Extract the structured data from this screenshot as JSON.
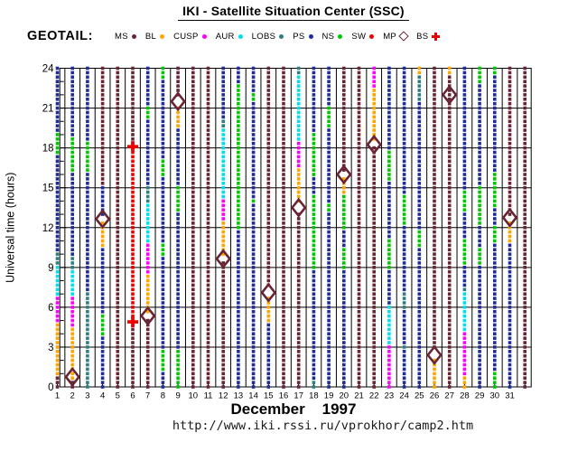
{
  "header": {
    "title": "IKI - Satellite Situation Center (SSC)"
  },
  "legend": {
    "satellite_label": "GEOTAIL:",
    "items": [
      {
        "label": "MS",
        "marker": "dot",
        "region": "MS"
      },
      {
        "label": "BL",
        "marker": "dot",
        "region": "BL"
      },
      {
        "label": "CUSP",
        "marker": "dot",
        "region": "CUSP"
      },
      {
        "label": "AUR",
        "marker": "dot",
        "region": "AUR"
      },
      {
        "label": "LOBS",
        "marker": "dot",
        "region": "LOBS"
      },
      {
        "label": "PS",
        "marker": "dot",
        "region": "PS"
      },
      {
        "label": "NS",
        "marker": "dot",
        "region": "NS"
      },
      {
        "label": "SW",
        "marker": "dot",
        "region": "SW"
      },
      {
        "label": "MP",
        "marker": "open-diamond",
        "region": "MP"
      },
      {
        "label": "BS",
        "marker": "plus",
        "region": "BS"
      }
    ]
  },
  "footer": {
    "month_year": "December    1997",
    "url": "http://www.iki.rssi.ru/vprokhor/camp2.htm"
  },
  "chart_data": {
    "type": "scatter",
    "title": "IKI - Satellite Situation Center (SSC)",
    "satellite": "GEOTAIL",
    "month": "December",
    "year": "1997",
    "ylabel": "Universal time (hours)",
    "ylim": [
      0,
      24
    ],
    "y_ticks": [
      0,
      3,
      6,
      9,
      12,
      15,
      18,
      21,
      24
    ],
    "x_ticks": [
      "1",
      "2",
      "3",
      "4",
      "5",
      "6",
      "7",
      "8",
      "9",
      "10",
      "11",
      "12",
      "13",
      "14",
      "15",
      "16",
      "17",
      "18",
      "19",
      "20",
      "21",
      "22",
      "23",
      "24",
      "25",
      "26",
      "27",
      "28",
      "29",
      "30",
      "31"
    ],
    "grid": true,
    "legend_position": "top",
    "sample_interval_hours": 0.3333,
    "region_colors": {
      "MS": "#6a2534",
      "BL": "#ffa500",
      "CUSP": "#ff00ff",
      "AUR": "#00dff0",
      "LOBS": "#2e7f7f",
      "PS": "#1f2d9a",
      "NS": "#00c800",
      "SW": "#ee0000",
      "MP": "#6a2534",
      "BS": "#ee0000"
    },
    "days": [
      {
        "day": "1",
        "segments": [
          [
            "MS",
            0,
            0.7
          ],
          [
            "BL",
            0.7,
            4.8
          ],
          [
            "CUSP",
            4.8,
            6.9
          ],
          [
            "AUR",
            6.9,
            9.1
          ],
          [
            "LOBS",
            9.1,
            10.0
          ],
          [
            "PS",
            10.0,
            17.4
          ],
          [
            "NS",
            17.4,
            19.3
          ],
          [
            "PS",
            19.3,
            24.1
          ]
        ]
      },
      {
        "day": "2",
        "segments": [
          [
            "MS",
            0,
            0.35
          ],
          [
            "BL",
            0.35,
            4.4
          ],
          [
            "CUSP",
            4.4,
            6.7
          ],
          [
            "AUR",
            6.7,
            8.9
          ],
          [
            "LOBS",
            8.9,
            9.8
          ],
          [
            "PS",
            9.8,
            16.3
          ],
          [
            "NS",
            16.3,
            18.9
          ],
          [
            "PS",
            18.9,
            24.1
          ]
        ],
        "mp": [
          0.75
        ]
      },
      {
        "day": "3",
        "segments": [
          [
            "LOBS",
            0,
            7.3
          ],
          [
            "PS",
            7.3,
            16.2
          ],
          [
            "NS",
            16.2,
            18.4
          ],
          [
            "PS",
            18.4,
            24.1
          ]
        ]
      },
      {
        "day": "4",
        "segments": [
          [
            "PS",
            0,
            3.8
          ],
          [
            "NS",
            3.8,
            5.4
          ],
          [
            "PS",
            5.4,
            10.4
          ],
          [
            "BL",
            10.4,
            12.5
          ],
          [
            "PS",
            12.8,
            15.0
          ],
          [
            "MS",
            15.0,
            24.1
          ]
        ],
        "mp": [
          12.65
        ]
      },
      {
        "day": "5",
        "segments": [
          [
            "MS",
            0,
            24.1
          ]
        ]
      },
      {
        "day": "6",
        "segments": [
          [
            "MS",
            0,
            4.8
          ],
          [
            "SW",
            4.8,
            18.0
          ],
          [
            "MS",
            18.3,
            24.1
          ]
        ],
        "bs": [
          4.9,
          18.1
        ]
      },
      {
        "day": "7",
        "segments": [
          [
            "MS",
            0,
            5.1
          ],
          [
            "BL",
            5.6,
            8.5
          ],
          [
            "CUSP",
            8.5,
            10.7
          ],
          [
            "AUR",
            10.7,
            13.9
          ],
          [
            "LOBS",
            13.9,
            15.2
          ],
          [
            "PS",
            15.2,
            20.1
          ],
          [
            "NS",
            20.1,
            21.3
          ],
          [
            "PS",
            21.3,
            24.1
          ]
        ],
        "mp": [
          5.35
        ]
      },
      {
        "day": "8",
        "segments": [
          [
            "PS",
            0,
            1.1
          ],
          [
            "NS",
            1.1,
            2.7
          ],
          [
            "PS",
            2.7,
            9.8
          ],
          [
            "NS",
            9.8,
            10.9
          ],
          [
            "PS",
            10.9,
            15.9
          ],
          [
            "NS",
            15.9,
            17.3
          ],
          [
            "PS",
            17.3,
            23.2
          ],
          [
            "NS",
            23.2,
            24.1
          ]
        ]
      },
      {
        "day": "9",
        "segments": [
          [
            "NS",
            0,
            2.9
          ],
          [
            "PS",
            2.9,
            13.3
          ],
          [
            "NS",
            13.3,
            15.1
          ],
          [
            "PS",
            15.1,
            19.5
          ],
          [
            "BL",
            19.5,
            21.3
          ],
          [
            "MS",
            21.8,
            24.1
          ]
        ],
        "mp": [
          21.5
        ]
      },
      {
        "day": "10",
        "segments": [
          [
            "MS",
            0,
            24.1
          ]
        ]
      },
      {
        "day": "11",
        "segments": [
          [
            "MS",
            0,
            24.1
          ]
        ]
      },
      {
        "day": "12",
        "segments": [
          [
            "MS",
            0,
            9.4
          ],
          [
            "BL",
            9.9,
            12.4
          ],
          [
            "CUSP",
            12.4,
            14.3
          ],
          [
            "AUR",
            14.3,
            19.6
          ],
          [
            "LOBS",
            19.6,
            20.0
          ],
          [
            "PS",
            20.0,
            24.1
          ]
        ],
        "mp": [
          9.65
        ]
      },
      {
        "day": "13",
        "segments": [
          [
            "PS",
            0,
            11.7
          ],
          [
            "NS",
            11.7,
            22.8
          ],
          [
            "PS",
            22.8,
            24.1
          ]
        ]
      },
      {
        "day": "14",
        "segments": [
          [
            "PS",
            0,
            13.7
          ],
          [
            "NS",
            13.7,
            14.3
          ],
          [
            "PS",
            14.3,
            21.4
          ],
          [
            "NS",
            21.4,
            22.1
          ],
          [
            "PS",
            22.1,
            24.1
          ]
        ]
      },
      {
        "day": "15",
        "segments": [
          [
            "PS",
            0,
            4.9
          ],
          [
            "BL",
            4.9,
            6.9
          ],
          [
            "MS",
            7.4,
            24.1
          ]
        ],
        "mp": [
          7.1
        ]
      },
      {
        "day": "16",
        "segments": [
          [
            "MS",
            0,
            24.1
          ]
        ]
      },
      {
        "day": "17",
        "segments": [
          [
            "MS",
            0,
            13.3
          ],
          [
            "BL",
            13.8,
            16.5
          ],
          [
            "CUSP",
            16.5,
            18.6
          ],
          [
            "AUR",
            18.6,
            23.5
          ],
          [
            "LOBS",
            23.5,
            24.1
          ]
        ],
        "mp": [
          13.5
        ]
      },
      {
        "day": "18",
        "segments": [
          [
            "LOBS",
            0,
            0.35
          ],
          [
            "PS",
            0.35,
            8.8
          ],
          [
            "NS",
            8.8,
            14.4
          ],
          [
            "PS",
            14.4,
            15.8
          ],
          [
            "NS",
            15.8,
            19.2
          ],
          [
            "PS",
            19.2,
            24.1
          ]
        ]
      },
      {
        "day": "19",
        "segments": [
          [
            "PS",
            0,
            13.0
          ],
          [
            "NS",
            13.0,
            13.9
          ],
          [
            "PS",
            13.9,
            19.6
          ],
          [
            "NS",
            19.6,
            21.1
          ],
          [
            "PS",
            21.1,
            24.1
          ]
        ]
      },
      {
        "day": "20",
        "segments": [
          [
            "PS",
            0,
            8.8
          ],
          [
            "NS",
            8.8,
            10.6
          ],
          [
            "PS",
            10.6,
            11.7
          ],
          [
            "NS",
            11.7,
            14.4
          ],
          [
            "BL",
            14.4,
            15.8
          ],
          [
            "MS",
            16.3,
            24.1
          ]
        ],
        "mp": [
          16.0
        ]
      },
      {
        "day": "21",
        "segments": [
          [
            "MS",
            0,
            24.1
          ]
        ]
      },
      {
        "day": "22",
        "segments": [
          [
            "MS",
            0,
            18.0
          ],
          [
            "BL",
            18.6,
            22.6
          ],
          [
            "CUSP",
            22.6,
            24.1
          ]
        ],
        "mp": [
          18.25
        ]
      },
      {
        "day": "23",
        "segments": [
          [
            "CUSP",
            0,
            3.3
          ],
          [
            "AUR",
            3.3,
            6.1
          ],
          [
            "PS",
            6.1,
            8.8
          ],
          [
            "NS",
            8.8,
            11.1
          ],
          [
            "PS",
            11.1,
            15.4
          ],
          [
            "NS",
            15.4,
            17.7
          ],
          [
            "PS",
            17.7,
            24.1
          ]
        ]
      },
      {
        "day": "24",
        "segments": [
          [
            "PS",
            0,
            2.7
          ],
          [
            "LOBS",
            2.7,
            3.3
          ],
          [
            "PS",
            3.3,
            5.9
          ],
          [
            "LOBS",
            5.9,
            7.3
          ],
          [
            "PS",
            7.3,
            12.2
          ],
          [
            "NS",
            12.2,
            14.6
          ],
          [
            "PS",
            14.6,
            24.1
          ]
        ]
      },
      {
        "day": "25",
        "segments": [
          [
            "PS",
            0,
            10.4
          ],
          [
            "NS",
            10.4,
            11.9
          ],
          [
            "PS",
            11.9,
            21.6
          ],
          [
            "LOBS",
            21.6,
            23.6
          ],
          [
            "BL",
            23.6,
            24.1
          ]
        ]
      },
      {
        "day": "26",
        "segments": [
          [
            "BL",
            0,
            2.1
          ],
          [
            "MS",
            2.7,
            24.1
          ]
        ],
        "mp": [
          2.4
        ]
      },
      {
        "day": "27",
        "segments": [
          [
            "MS",
            0,
            23.6
          ],
          [
            "BL",
            23.6,
            24.1
          ]
        ],
        "mp": [
          22.0
        ]
      },
      {
        "day": "28",
        "segments": [
          [
            "BL",
            0,
            0.8
          ],
          [
            "CUSP",
            0.8,
            4.2
          ],
          [
            "AUR",
            4.2,
            7.2
          ],
          [
            "LOBS",
            7.2,
            7.6
          ],
          [
            "PS",
            7.6,
            9.2
          ],
          [
            "NS",
            9.2,
            11.0
          ],
          [
            "PS",
            11.0,
            13.2
          ],
          [
            "NS",
            13.2,
            14.7
          ],
          [
            "PS",
            14.7,
            24.1
          ]
        ]
      },
      {
        "day": "29",
        "segments": [
          [
            "PS",
            0,
            9.0
          ],
          [
            "NS",
            9.0,
            10.4
          ],
          [
            "PS",
            10.4,
            12.2
          ],
          [
            "NS",
            12.2,
            15.1
          ],
          [
            "PS",
            15.1,
            22.9
          ],
          [
            "NS",
            22.9,
            24.1
          ]
        ]
      },
      {
        "day": "30",
        "segments": [
          [
            "NS",
            0,
            1.3
          ],
          [
            "PS",
            1.3,
            10.8
          ],
          [
            "NS",
            10.8,
            12.0
          ],
          [
            "PS",
            12.0,
            13.4
          ],
          [
            "NS",
            13.4,
            16.1
          ],
          [
            "PS",
            16.1,
            23.6
          ],
          [
            "NS",
            23.6,
            24.1
          ]
        ]
      },
      {
        "day": "31",
        "segments": [
          [
            "PS",
            0,
            10.8
          ],
          [
            "BL",
            10.8,
            12.5
          ],
          [
            "MS",
            13.0,
            24.1
          ]
        ],
        "mp": [
          12.75
        ]
      },
      {
        "day": "",
        "segments": [
          [
            "MS",
            0,
            24.1
          ]
        ]
      }
    ]
  }
}
